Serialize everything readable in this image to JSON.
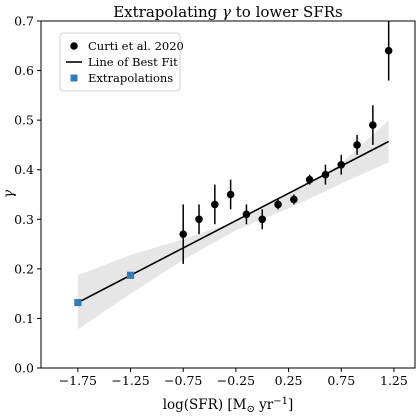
{
  "chart_data": {
    "type": "scatter",
    "title": {
      "prefix": "Extrapolating ",
      "symbol": "γ",
      "suffix": " to lower SFRs"
    },
    "xlabel": {
      "prefix": "log(SFR) [M",
      "sub": "⊙",
      "mid": " yr",
      "sup": "−1",
      "suffix": "]"
    },
    "ylabel": "γ",
    "xlim": [
      -2.1,
      1.45
    ],
    "ylim": [
      0.0,
      0.7
    ],
    "xticks": [
      -1.75,
      -1.25,
      -0.75,
      -0.25,
      0.25,
      0.75,
      1.25
    ],
    "xtick_labels": [
      "−1.75",
      "−1.25",
      "−0.75",
      "−0.25",
      "0.25",
      "0.75",
      "1.25"
    ],
    "yticks": [
      0.0,
      0.1,
      0.2,
      0.3,
      0.4,
      0.5,
      0.6,
      0.7
    ],
    "ytick_labels": [
      "0.0",
      "0.1",
      "0.2",
      "0.3",
      "0.4",
      "0.5",
      "0.6",
      "0.7"
    ],
    "legend": {
      "placement": "top-left"
    },
    "series": [
      {
        "name": "Curti et al. 2020",
        "kind": "errorbar",
        "color": "#000000",
        "x": [
          -0.75,
          -0.6,
          -0.45,
          -0.3,
          -0.15,
          0.0,
          0.15,
          0.3,
          0.45,
          0.6,
          0.75,
          0.9,
          1.05,
          1.2
        ],
        "y": [
          0.27,
          0.3,
          0.33,
          0.35,
          0.31,
          0.3,
          0.33,
          0.34,
          0.38,
          0.39,
          0.41,
          0.45,
          0.49,
          0.64
        ],
        "yerr": [
          0.06,
          0.03,
          0.04,
          0.03,
          0.02,
          0.02,
          0.01,
          0.01,
          0.01,
          0.02,
          0.02,
          0.02,
          0.04,
          0.06
        ]
      },
      {
        "name": "Line of Best Fit",
        "kind": "line",
        "color": "#000000",
        "x": [
          -1.75,
          1.2
        ],
        "y": [
          0.132,
          0.457
        ],
        "band": {
          "x": [
            -1.75,
            -1.25,
            -0.75,
            -0.25,
            0.25,
            0.75,
            1.2
          ],
          "lower": [
            0.078,
            0.15,
            0.218,
            0.278,
            0.322,
            0.372,
            0.415
          ],
          "upper": [
            0.187,
            0.228,
            0.26,
            0.296,
            0.35,
            0.412,
            0.5
          ],
          "color": "#e6e6e6"
        }
      },
      {
        "name": "Extrapolations",
        "kind": "square",
        "color": "#2f7ebc",
        "x": [
          -1.75,
          -1.25
        ],
        "y": [
          0.132,
          0.187
        ]
      }
    ]
  }
}
